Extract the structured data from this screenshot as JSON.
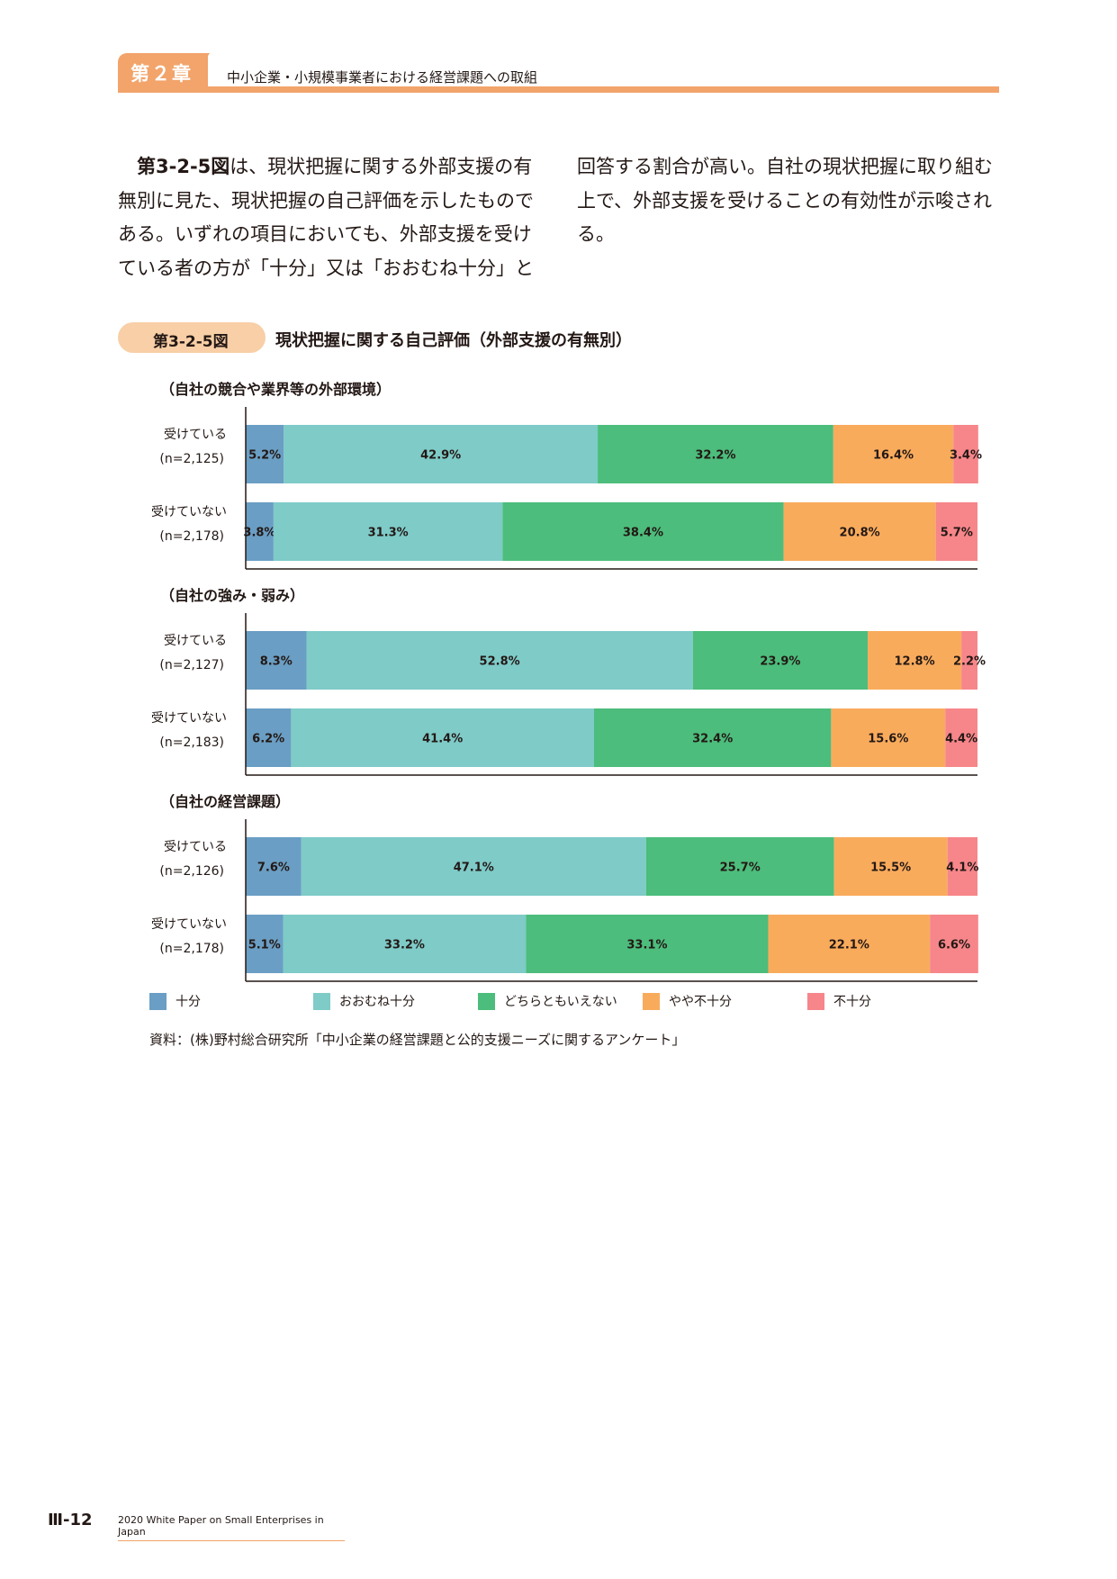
{
  "header": {
    "chapter_label": "第２章",
    "chapter_title": "中小企業・小規模事業者における経営課題への取組"
  },
  "body": {
    "left_ref": "第3-2-5図",
    "left_text": "は、現状把握に関する外部支援の有無別に見た、現状把握の自己評価を示したものである。いずれの項目においても、外部支援を受けている者の方が「十分」又は「おおむね十分」と",
    "right_text": "回答する割合が高い。自社の現状把握に取り組む上で、外部支援を受けることの有効性が示唆される。"
  },
  "figure": {
    "number": "第3-2-5図",
    "title": "現状把握に関する自己評価（外部支援の有無別）"
  },
  "chart_data": {
    "type": "bar",
    "orientation": "horizontal",
    "stacked": true,
    "unit": "%",
    "xlim": [
      0,
      100
    ],
    "legend_position": "bottom",
    "series_names": [
      "十分",
      "おおむね十分",
      "どちらともいえない",
      "やや不十分",
      "不十分"
    ],
    "colors": [
      "#6a9ec4",
      "#7ecbc8",
      "#4cbd7c",
      "#f9ab5c",
      "#f6868a"
    ],
    "groups": [
      {
        "title": "（自社の競合や業界等の外部環境）",
        "rows": [
          {
            "label": "受けている",
            "n": "(n=2,125)",
            "values": [
              5.2,
              42.9,
              32.2,
              16.4,
              3.4
            ]
          },
          {
            "label": "受けていない",
            "n": "(n=2,178)",
            "values": [
              3.8,
              31.3,
              38.4,
              20.8,
              5.7
            ]
          }
        ]
      },
      {
        "title": "（自社の強み・弱み）",
        "rows": [
          {
            "label": "受けている",
            "n": "(n=2,127)",
            "values": [
              8.3,
              52.8,
              23.9,
              12.8,
              2.2
            ]
          },
          {
            "label": "受けていない",
            "n": "(n=2,183)",
            "values": [
              6.2,
              41.4,
              32.4,
              15.6,
              4.4
            ]
          }
        ]
      },
      {
        "title": "（自社の経営課題）",
        "rows": [
          {
            "label": "受けている",
            "n": "(n=2,126)",
            "values": [
              7.6,
              47.1,
              25.7,
              15.5,
              4.1
            ]
          },
          {
            "label": "受けていない",
            "n": "(n=2,178)",
            "values": [
              5.1,
              33.2,
              33.1,
              22.1,
              6.6
            ]
          }
        ]
      }
    ]
  },
  "source": "資料：(株)野村総合研究所「中小企業の経営課題と公的支援ニーズに関するアンケート」",
  "footer": {
    "page_number": "Ⅲ-12",
    "publication": "2020 White Paper on Small Enterprises in Japan"
  }
}
